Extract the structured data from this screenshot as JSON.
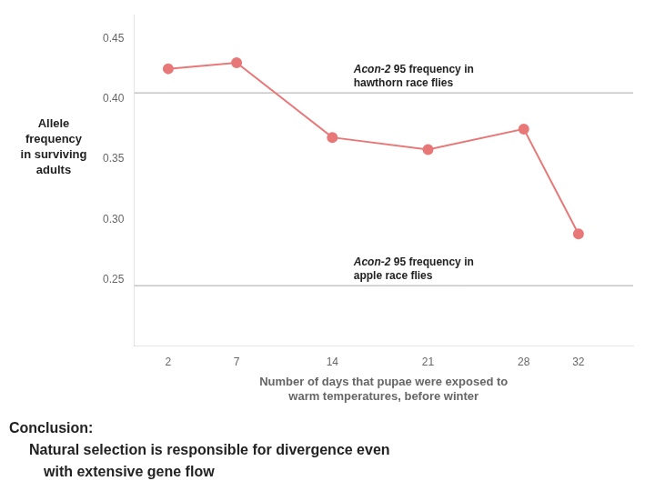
{
  "chart_data": {
    "type": "line",
    "x": [
      2,
      7,
      14,
      21,
      28,
      32
    ],
    "values": [
      0.425,
      0.43,
      0.368,
      0.358,
      0.375,
      0.288
    ],
    "color": "#E87878",
    "marker": "circle",
    "line_style": "solid",
    "xlabel": "Number of days that pupae were exposed to\nwarm temperatures, before winter",
    "ylabel": "Allele\nfrequency\nin surviving\nadults",
    "xlim": [
      -0.5,
      36
    ],
    "xticks": [
      2,
      7,
      14,
      21,
      28,
      32
    ],
    "ylim": [
      0.195,
      0.47
    ],
    "yticks": [
      0.25,
      {
        "value": 0.3,
        "label": "0.30"
      },
      0.35,
      {
        "value": 0.4,
        "label": "0.40"
      },
      0.45
    ],
    "grid": false,
    "reference_lines": [
      {
        "y": 0.405,
        "color": "#AAAAAA",
        "label_italic": "Acon-2",
        "label": "95 frequency in\nhawthorn race flies"
      },
      {
        "y": 0.245,
        "color": "#AAAAAA",
        "label_italic": "Acon-2",
        "label": "95 frequency in\napple race flies"
      }
    ],
    "conclusion": "Conclusion:\nNatural selection is responsible for divergence even\nwith extensive gene flow"
  }
}
